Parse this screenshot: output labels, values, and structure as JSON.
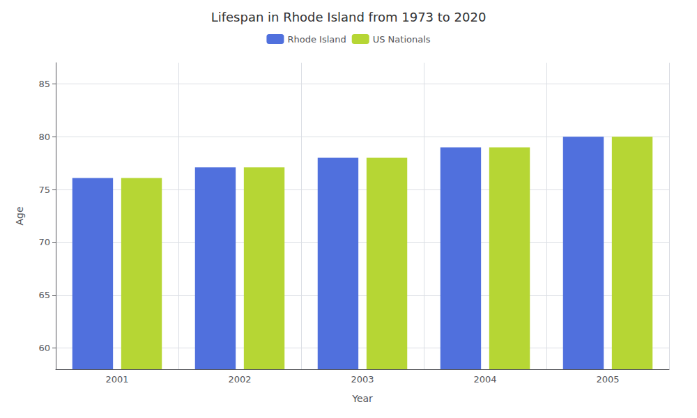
{
  "chart_data": {
    "type": "bar",
    "title": "Lifespan in Rhode Island from 1973 to 2020",
    "x_label": "Year",
    "y_label": "Age",
    "categories": [
      "2001",
      "2002",
      "2003",
      "2004",
      "2005"
    ],
    "series": [
      {
        "name": "Rhode Island",
        "values": [
          76.1,
          77.1,
          78.0,
          79.0,
          80.0
        ]
      },
      {
        "name": "US Nationals",
        "values": [
          76.1,
          77.1,
          78.0,
          79.0,
          80.0
        ]
      }
    ],
    "ylim": [
      58,
      87
    ],
    "yticks": [
      60,
      65,
      70,
      75,
      80,
      85
    ],
    "grid": true,
    "legend": "top"
  }
}
